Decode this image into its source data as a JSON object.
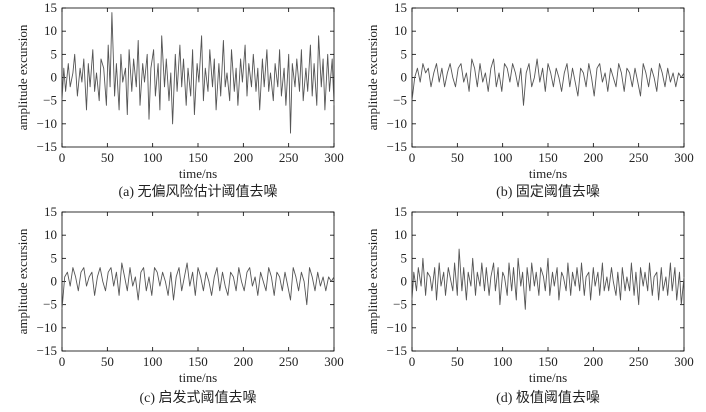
{
  "chart_data": [
    {
      "type": "line",
      "caption": "(a) 无偏风险估计阈值去噪",
      "xlabel": "time/ns",
      "ylabel": "amplitude excursion",
      "xlim": [
        0,
        300
      ],
      "ylim": [
        -15,
        15
      ],
      "xticks": [
        0,
        50,
        100,
        150,
        200,
        250,
        300
      ],
      "yticks": [
        15,
        10,
        5,
        0,
        -5,
        -10,
        -15
      ],
      "line_color": "#555555",
      "series": [
        {
          "x": [
            0,
            2,
            4,
            7,
            9,
            12,
            14,
            17,
            20,
            22,
            24,
            27,
            29,
            31,
            34,
            36,
            38,
            41,
            43,
            46,
            49,
            51,
            53,
            55,
            58,
            60,
            63,
            65,
            67,
            70,
            72,
            74,
            77,
            79,
            82,
            84,
            86,
            89,
            91,
            94,
            96,
            98,
            101,
            103,
            106,
            108,
            110,
            113,
            115,
            118,
            120,
            122,
            125,
            127,
            130,
            132,
            134,
            137,
            139,
            142,
            144,
            146,
            149,
            151,
            154,
            156,
            158,
            161,
            163,
            166,
            168,
            170,
            173,
            175,
            178,
            180,
            182,
            185,
            187,
            190,
            192,
            194,
            197,
            199,
            202,
            204,
            206,
            209,
            211,
            214,
            216,
            218,
            221,
            223,
            226,
            228,
            230,
            233,
            235,
            238,
            240,
            242,
            245,
            247,
            250,
            252,
            254,
            257,
            259,
            262,
            264,
            266,
            269,
            271,
            274,
            276,
            278,
            281,
            283,
            286,
            288,
            290,
            293,
            295,
            298,
            300
          ],
          "y": [
            -5,
            2,
            -3,
            3,
            -2,
            1,
            5,
            -4,
            2,
            -1,
            4,
            -7,
            3,
            -2,
            6,
            -3,
            1,
            -5,
            4,
            2,
            -6,
            7,
            -2,
            14,
            -4,
            3,
            -7,
            5,
            -1,
            2,
            -8,
            6,
            -3,
            4,
            -2,
            8,
            -6,
            3,
            -1,
            5,
            -9,
            2,
            6,
            -4,
            3,
            -7,
            9,
            -2,
            4,
            -5,
            1,
            -10,
            5,
            -3,
            7,
            -2,
            4,
            -6,
            2,
            -4,
            6,
            -8,
            3,
            -1,
            9,
            -5,
            2,
            -3,
            6,
            -2,
            4,
            -7,
            3,
            -4,
            8,
            -2,
            1,
            -5,
            6,
            -3,
            2,
            -6,
            4,
            -1,
            7,
            -4,
            3,
            -2,
            5,
            -3,
            2,
            -7,
            4,
            -2,
            6,
            -3,
            1,
            -5,
            3,
            -2,
            6,
            -4,
            2,
            -6,
            5,
            -12,
            3,
            -2,
            4,
            -3,
            6,
            -5,
            2,
            -3,
            7,
            -4,
            3,
            -6,
            9,
            -2,
            4,
            -7,
            5,
            -3,
            4,
            -6
          ]
        }
      ]
    },
    {
      "type": "line",
      "caption": "(b) 固定阈值去噪",
      "xlabel": "time/ns",
      "ylabel": "amplitude excursion",
      "xlim": [
        0,
        300
      ],
      "ylim": [
        -15,
        15
      ],
      "xticks": [
        0,
        50,
        100,
        150,
        200,
        250,
        300
      ],
      "yticks": [
        15,
        10,
        5,
        0,
        -5,
        -10,
        -15
      ],
      "line_color": "#555555",
      "series": [
        {
          "x": [
            0,
            3,
            6,
            9,
            12,
            15,
            18,
            21,
            24,
            27,
            30,
            33,
            36,
            39,
            42,
            45,
            48,
            51,
            54,
            57,
            60,
            63,
            66,
            69,
            72,
            75,
            78,
            81,
            84,
            87,
            90,
            93,
            96,
            99,
            102,
            105,
            108,
            111,
            114,
            117,
            120,
            123,
            126,
            129,
            132,
            135,
            138,
            141,
            144,
            147,
            150,
            153,
            156,
            159,
            162,
            165,
            168,
            171,
            174,
            177,
            180,
            183,
            186,
            189,
            192,
            195,
            198,
            201,
            204,
            207,
            210,
            213,
            216,
            219,
            222,
            225,
            228,
            231,
            234,
            237,
            240,
            243,
            246,
            249,
            252,
            255,
            258,
            261,
            264,
            267,
            270,
            273,
            276,
            279,
            282,
            285,
            288,
            291,
            294,
            297,
            300
          ],
          "y": [
            -5,
            0,
            2,
            -1,
            3,
            1,
            2,
            -2,
            1,
            3,
            -1,
            2,
            -2,
            1,
            3,
            0,
            -2,
            2,
            3,
            -1,
            1,
            -3,
            4,
            2,
            -2,
            3,
            -1,
            1,
            -3,
            2,
            4,
            -2,
            1,
            -3,
            3,
            2,
            -1,
            3,
            1,
            -2,
            2,
            -6,
            1,
            3,
            -2,
            0,
            4,
            -1,
            2,
            -3,
            3,
            1,
            -2,
            2,
            0,
            -3,
            1,
            3,
            -2,
            2,
            -1,
            -4,
            2,
            1,
            -2,
            3,
            0,
            -4,
            2,
            3,
            -1,
            1,
            -3,
            2,
            0,
            -2,
            3,
            1,
            -3,
            2,
            1,
            -2,
            2,
            -1,
            -4,
            3,
            1,
            -2,
            2,
            0,
            -3,
            3,
            1,
            -2,
            2,
            -1,
            1,
            -2,
            1,
            0,
            1
          ]
        }
      ]
    },
    {
      "type": "line",
      "caption": "(c) 启发式阈值去噪",
      "xlabel": "time/ns",
      "ylabel": "amplitude excursion",
      "xlim": [
        0,
        300
      ],
      "ylim": [
        -15,
        15
      ],
      "xticks": [
        0,
        50,
        100,
        150,
        200,
        250,
        300
      ],
      "yticks": [
        15,
        10,
        5,
        0,
        -5,
        -10,
        -15
      ],
      "line_color": "#555555",
      "series": [
        {
          "x": [
            0,
            3,
            6,
            9,
            12,
            15,
            18,
            21,
            24,
            27,
            30,
            33,
            36,
            39,
            42,
            45,
            48,
            51,
            54,
            57,
            60,
            63,
            66,
            69,
            72,
            75,
            78,
            81,
            84,
            87,
            90,
            93,
            96,
            99,
            102,
            105,
            108,
            111,
            114,
            117,
            120,
            123,
            126,
            129,
            132,
            135,
            138,
            141,
            144,
            147,
            150,
            153,
            156,
            159,
            162,
            165,
            168,
            171,
            174,
            177,
            180,
            183,
            186,
            189,
            192,
            195,
            198,
            201,
            204,
            207,
            210,
            213,
            216,
            219,
            222,
            225,
            228,
            231,
            234,
            237,
            240,
            243,
            246,
            249,
            252,
            255,
            258,
            261,
            264,
            267,
            270,
            273,
            276,
            279,
            282,
            285,
            288,
            291,
            294,
            297,
            300
          ],
          "y": [
            -6,
            1,
            2,
            -1,
            3,
            1,
            -2,
            2,
            3,
            -1,
            1,
            2,
            -3,
            1,
            3,
            0,
            -2,
            2,
            3,
            -1,
            2,
            -3,
            4,
            1,
            -2,
            3,
            -1,
            1,
            -4,
            2,
            3,
            -2,
            1,
            -3,
            3,
            2,
            -1,
            2,
            0,
            -3,
            2,
            -4,
            1,
            3,
            -2,
            1,
            4,
            -1,
            2,
            -3,
            3,
            1,
            -2,
            2,
            0,
            -3,
            1,
            3,
            -2,
            2,
            -1,
            -3,
            2,
            1,
            -2,
            3,
            0,
            -2,
            2,
            3,
            -1,
            1,
            -3,
            2,
            0,
            -2,
            3,
            1,
            -3,
            2,
            1,
            -2,
            2,
            -1,
            -4,
            3,
            1,
            -2,
            2,
            0,
            -5,
            3,
            1,
            -2,
            2,
            -1,
            1,
            -2,
            1,
            0,
            1
          ]
        }
      ]
    },
    {
      "type": "line",
      "caption": "(d) 极值阈值去噪",
      "xlabel": "time/ns",
      "ylabel": "amplitude excursion",
      "xlim": [
        0,
        300
      ],
      "ylim": [
        -15,
        15
      ],
      "xticks": [
        0,
        50,
        100,
        150,
        200,
        250,
        300
      ],
      "yticks": [
        15,
        10,
        5,
        0,
        -5,
        -10,
        -15
      ],
      "line_color": "#555555",
      "series": [
        {
          "x": [
            0,
            2,
            5,
            7,
            10,
            12,
            15,
            17,
            20,
            22,
            25,
            27,
            30,
            32,
            35,
            37,
            40,
            42,
            45,
            47,
            50,
            52,
            55,
            57,
            60,
            62,
            65,
            67,
            70,
            72,
            75,
            77,
            80,
            82,
            85,
            87,
            90,
            92,
            95,
            97,
            100,
            102,
            105,
            107,
            110,
            112,
            115,
            117,
            120,
            122,
            125,
            127,
            130,
            132,
            135,
            137,
            140,
            142,
            145,
            147,
            150,
            152,
            155,
            157,
            160,
            162,
            165,
            167,
            170,
            172,
            175,
            177,
            180,
            182,
            185,
            187,
            190,
            192,
            195,
            197,
            200,
            202,
            205,
            207,
            210,
            212,
            215,
            217,
            220,
            222,
            225,
            227,
            230,
            232,
            235,
            237,
            240,
            242,
            245,
            247,
            250,
            252,
            255,
            257,
            260,
            262,
            265,
            267,
            270,
            272,
            275,
            277,
            280,
            282,
            285,
            287,
            290,
            292,
            295,
            297,
            300
          ],
          "y": [
            -4,
            2,
            -2,
            3,
            -1,
            5,
            -3,
            2,
            1,
            -2,
            3,
            -4,
            4,
            -1,
            2,
            -3,
            3,
            1,
            -2,
            4,
            -3,
            7,
            -2,
            3,
            -4,
            2,
            -1,
            5,
            -3,
            2,
            -1,
            4,
            -2,
            3,
            -3,
            1,
            4,
            -2,
            3,
            -5,
            2,
            1,
            -3,
            4,
            -2,
            3,
            -4,
            5,
            -1,
            2,
            -6,
            3,
            -2,
            4,
            -1,
            2,
            -3,
            3,
            1,
            -2,
            5,
            -3,
            2,
            -1,
            3,
            -4,
            2,
            1,
            -2,
            4,
            -3,
            2,
            -1,
            3,
            -2,
            4,
            -3,
            1,
            2,
            -4,
            3,
            -1,
            2,
            -3,
            4,
            -2,
            1,
            -2,
            3,
            0,
            -3,
            2,
            -4,
            3,
            -2,
            1,
            -2,
            4,
            -3,
            2,
            -5,
            3,
            -1,
            2,
            -2,
            4,
            -3,
            1,
            2,
            -4,
            3,
            -2,
            1,
            -3,
            4,
            -2,
            3,
            -4,
            2,
            -5,
            1
          ]
        }
      ]
    }
  ]
}
